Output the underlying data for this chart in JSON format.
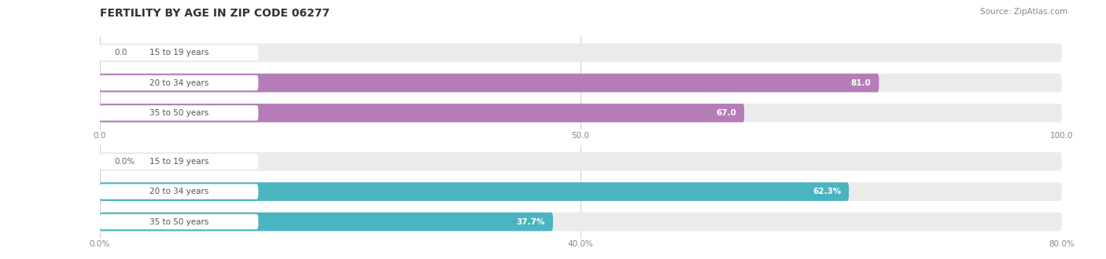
{
  "title": "FERTILITY BY AGE IN ZIP CODE 06277",
  "source": "Source: ZipAtlas.com",
  "chart1": {
    "categories": [
      "15 to 19 years",
      "20 to 34 years",
      "35 to 50 years"
    ],
    "values": [
      0.0,
      81.0,
      67.0
    ],
    "max_val": 100.0,
    "xlim": [
      0,
      100
    ],
    "xticks": [
      0.0,
      50.0,
      100.0
    ],
    "xtick_labels": [
      "0.0",
      "50.0",
      "100.0"
    ],
    "bar_color": "#b57db8",
    "bg_color": "#ebebeb",
    "label_values": [
      "0.0",
      "81.0",
      "67.0"
    ],
    "val_threshold": 5
  },
  "chart2": {
    "categories": [
      "15 to 19 years",
      "20 to 34 years",
      "35 to 50 years"
    ],
    "values": [
      0.0,
      62.3,
      37.7
    ],
    "max_val": 80.0,
    "xlim": [
      0,
      80
    ],
    "xticks": [
      0.0,
      40.0,
      80.0
    ],
    "xtick_labels": [
      "0.0%",
      "40.0%",
      "80.0%"
    ],
    "bar_color": "#4ab5c0",
    "bg_color": "#ebebeb",
    "label_values": [
      "0.0%",
      "62.3%",
      "37.7%"
    ],
    "val_threshold": 4
  },
  "title_fontsize": 10,
  "source_fontsize": 7.5,
  "label_fontsize": 7.5,
  "tick_fontsize": 7.5,
  "cat_fontsize": 7.5
}
